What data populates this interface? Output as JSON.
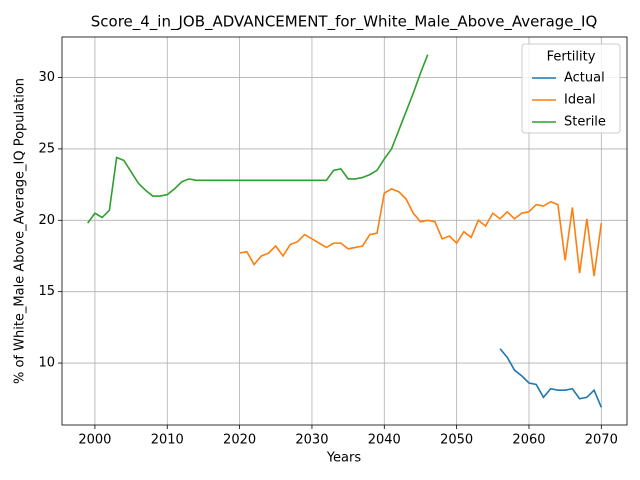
{
  "chart_data": {
    "type": "line",
    "title": "Score_4_in_JOB_ADVANCEMENT_for_White_Male_Above_Average_IQ",
    "xlabel": "Years",
    "ylabel": "% of White_Male Above_Average_IQ Population",
    "legend_title": "Fertility",
    "legend": "upper right",
    "grid": true,
    "x": [
      1999,
      2000,
      2001,
      2002,
      2003,
      2004,
      2005,
      2006,
      2007,
      2008,
      2009,
      2010,
      2011,
      2012,
      2013,
      2014,
      2015,
      2016,
      2017,
      2018,
      2019,
      2020,
      2021,
      2022,
      2023,
      2024,
      2025,
      2026,
      2027,
      2028,
      2029,
      2030,
      2031,
      2032,
      2033,
      2034,
      2035,
      2036,
      2037,
      2038,
      2039,
      2040,
      2041,
      2042,
      2043,
      2044,
      2045,
      2046,
      2047,
      2048,
      2049,
      2050,
      2051,
      2052,
      2053,
      2054,
      2055,
      2056,
      2057,
      2058,
      2059,
      2060,
      2061,
      2062,
      2063,
      2064,
      2065,
      2066,
      2067,
      2068,
      2069,
      2070
    ],
    "series": [
      {
        "name": "Actual",
        "color": "#1f77b4",
        "values": [
          null,
          null,
          null,
          null,
          null,
          null,
          null,
          null,
          null,
          null,
          null,
          null,
          null,
          null,
          null,
          null,
          null,
          null,
          null,
          null,
          null,
          null,
          null,
          null,
          null,
          null,
          null,
          null,
          null,
          null,
          null,
          null,
          null,
          null,
          null,
          null,
          null,
          null,
          null,
          null,
          null,
          null,
          null,
          null,
          null,
          null,
          null,
          null,
          null,
          null,
          null,
          null,
          null,
          null,
          null,
          null,
          null,
          11.0,
          10.4,
          9.5,
          9.1,
          8.6,
          8.5,
          7.6,
          8.2,
          8.1,
          8.1,
          8.2,
          7.5,
          7.6,
          8.1,
          6.9
        ]
      },
      {
        "name": "Ideal",
        "color": "#ff7f0e",
        "values": [
          null,
          null,
          null,
          null,
          null,
          null,
          null,
          null,
          null,
          null,
          null,
          null,
          null,
          null,
          null,
          null,
          null,
          null,
          null,
          null,
          null,
          17.7,
          17.8,
          16.9,
          17.5,
          17.7,
          18.2,
          17.5,
          18.3,
          18.5,
          19.0,
          18.7,
          18.4,
          18.1,
          18.4,
          18.4,
          18.0,
          18.1,
          18.2,
          19.0,
          19.1,
          21.9,
          22.2,
          22.0,
          21.5,
          20.5,
          19.9,
          20.0,
          19.9,
          18.7,
          18.9,
          18.4,
          19.2,
          18.8,
          20.0,
          19.6,
          20.5,
          20.1,
          20.6,
          20.1,
          20.5,
          20.6,
          21.1,
          21.0,
          21.3,
          21.1,
          17.2,
          20.9,
          16.3,
          20.1,
          16.1,
          19.8
        ]
      },
      {
        "name": "Sterile",
        "color": "#2ca02c",
        "values": [
          19.8,
          20.5,
          20.2,
          20.7,
          24.4,
          24.2,
          23.4,
          22.6,
          22.1,
          21.7,
          21.7,
          21.8,
          22.2,
          22.7,
          22.9,
          22.8,
          22.8,
          22.8,
          22.8,
          22.8,
          22.8,
          22.8,
          22.8,
          22.8,
          22.8,
          22.8,
          22.8,
          22.8,
          22.8,
          22.8,
          22.8,
          22.8,
          22.8,
          22.8,
          23.5,
          23.6,
          22.9,
          22.9,
          23.0,
          23.2,
          23.5,
          24.3,
          25.0,
          26.3,
          27.6,
          28.9,
          30.3,
          31.6,
          null,
          null,
          null,
          null,
          null,
          null,
          null,
          null,
          null,
          null,
          null,
          null,
          null,
          null,
          null,
          null,
          null,
          null,
          null,
          null,
          null,
          null,
          null,
          null
        ]
      }
    ],
    "xlim": [
      1995.45,
      2073.55
    ],
    "xticks": [
      2000,
      2010,
      2020,
      2030,
      2040,
      2050,
      2060,
      2070
    ],
    "ylim": [
      5.66,
      32.84
    ],
    "yticks": [
      10,
      15,
      20,
      25,
      30
    ]
  }
}
